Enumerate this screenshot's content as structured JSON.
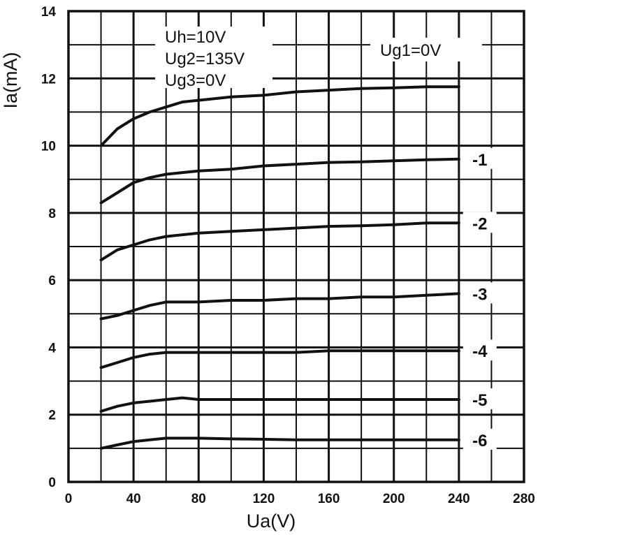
{
  "chart_data": {
    "type": "line",
    "xlabel": "Ua(V)",
    "ylabel": "Ia(mA)",
    "xlim": [
      0,
      280
    ],
    "ylim": [
      0,
      14
    ],
    "x_ticks": [
      0,
      40,
      80,
      120,
      160,
      200,
      240,
      280
    ],
    "y_ticks": [
      0,
      2,
      4,
      6,
      8,
      10,
      12,
      14
    ],
    "x_tick_labels": [
      "0",
      "40",
      "80",
      "120",
      "160",
      "200",
      "240",
      "280"
    ],
    "y_tick_labels": [
      "0",
      "2",
      "4",
      "6",
      "8",
      "10",
      "12",
      "14"
    ],
    "grid": true,
    "grid_step": {
      "x": 20,
      "y": 1
    },
    "annotations": {
      "conditions": [
        "Uh=10V",
        "Ug2=135V",
        "Ug3=0V"
      ],
      "top_curve": "Ug1=0V"
    },
    "series": [
      {
        "label": "Ug1=0V",
        "x": [
          20,
          30,
          40,
          50,
          60,
          70,
          80,
          100,
          120,
          140,
          160,
          180,
          200,
          220,
          240
        ],
        "y": [
          10.0,
          10.5,
          10.8,
          11.0,
          11.15,
          11.3,
          11.35,
          11.45,
          11.5,
          11.6,
          11.65,
          11.7,
          11.72,
          11.75,
          11.75
        ]
      },
      {
        "label": "-1",
        "x": [
          20,
          30,
          40,
          50,
          60,
          80,
          100,
          120,
          140,
          160,
          180,
          200,
          220,
          240
        ],
        "y": [
          8.3,
          8.6,
          8.9,
          9.05,
          9.15,
          9.25,
          9.3,
          9.4,
          9.45,
          9.5,
          9.52,
          9.55,
          9.58,
          9.6
        ]
      },
      {
        "label": "-2",
        "x": [
          20,
          30,
          40,
          50,
          60,
          80,
          100,
          120,
          140,
          160,
          180,
          200,
          220,
          240
        ],
        "y": [
          6.6,
          6.9,
          7.05,
          7.2,
          7.3,
          7.4,
          7.45,
          7.5,
          7.55,
          7.6,
          7.62,
          7.65,
          7.7,
          7.7
        ]
      },
      {
        "label": "-3",
        "x": [
          20,
          30,
          40,
          50,
          60,
          80,
          100,
          120,
          140,
          160,
          180,
          200,
          220,
          240
        ],
        "y": [
          4.85,
          4.95,
          5.1,
          5.25,
          5.35,
          5.35,
          5.4,
          5.4,
          5.45,
          5.45,
          5.5,
          5.5,
          5.55,
          5.6
        ]
      },
      {
        "label": "-4",
        "x": [
          20,
          30,
          40,
          50,
          60,
          80,
          100,
          120,
          140,
          160,
          180,
          200,
          220,
          240
        ],
        "y": [
          3.4,
          3.55,
          3.7,
          3.8,
          3.85,
          3.85,
          3.85,
          3.85,
          3.85,
          3.9,
          3.9,
          3.9,
          3.9,
          3.9
        ]
      },
      {
        "label": "-5",
        "x": [
          20,
          30,
          40,
          50,
          60,
          70,
          80,
          100,
          120,
          140,
          160,
          180,
          200,
          220,
          240
        ],
        "y": [
          2.1,
          2.25,
          2.35,
          2.4,
          2.45,
          2.5,
          2.45,
          2.45,
          2.45,
          2.45,
          2.45,
          2.45,
          2.45,
          2.45,
          2.45
        ]
      },
      {
        "label": "-6",
        "x": [
          20,
          30,
          40,
          50,
          60,
          70,
          80,
          100,
          120,
          140,
          160,
          180,
          200,
          220,
          240
        ],
        "y": [
          1.0,
          1.1,
          1.2,
          1.25,
          1.3,
          1.3,
          1.3,
          1.28,
          1.27,
          1.25,
          1.25,
          1.25,
          1.25,
          1.25,
          1.25
        ]
      }
    ]
  }
}
